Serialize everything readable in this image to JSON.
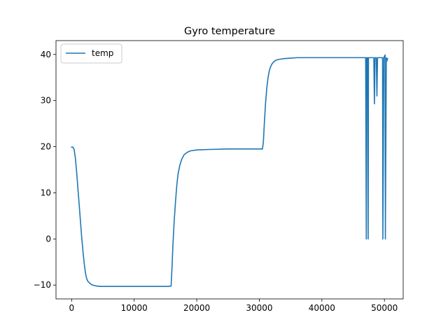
{
  "chart_data": {
    "type": "line",
    "title": "Gyro temperature",
    "xlabel": "",
    "ylabel": "",
    "xlim": [
      -2500,
      53000
    ],
    "ylim": [
      -13,
      43
    ],
    "xticks": [
      0,
      10000,
      20000,
      30000,
      40000,
      50000
    ],
    "xtick_labels": [
      "0",
      "10000",
      "20000",
      "30000",
      "40000",
      "50000"
    ],
    "yticks": [
      -10,
      0,
      10,
      20,
      30,
      40
    ],
    "ytick_labels": [
      "−10",
      "0",
      "10",
      "20",
      "30",
      "40"
    ],
    "grid": false,
    "legend_position": "upper left",
    "series": [
      {
        "name": "temp",
        "color": "#1f77b4",
        "x": [
          0,
          200,
          400,
          600,
          800,
          1000,
          1200,
          1400,
          1600,
          1800,
          2000,
          2200,
          2400,
          2600,
          2900,
          3200,
          3600,
          4000,
          4500,
          5000,
          6000,
          8000,
          10000,
          12000,
          14000,
          15500,
          15900,
          16050,
          16200,
          16400,
          16600,
          16800,
          17000,
          17300,
          17600,
          18000,
          18500,
          19000,
          20000,
          22000,
          25000,
          28000,
          30500,
          30650,
          30800,
          31000,
          31200,
          31400,
          31600,
          31800,
          32000,
          32300,
          32600,
          33000,
          33500,
          34000,
          35000,
          36000,
          36500,
          40000,
          44000,
          47000,
          47100,
          47150,
          47300,
          47400,
          47450,
          47600,
          47700,
          48300,
          48400,
          48500,
          48700,
          48800,
          48900,
          49200,
          49700,
          49750,
          49900,
          50100,
          50150,
          50300,
          50400,
          50500
        ],
        "y": [
          19.9,
          19.9,
          19.4,
          17.5,
          14.5,
          11.0,
          7.5,
          4.0,
          0.5,
          -2.5,
          -5.2,
          -7.3,
          -8.6,
          -9.2,
          -9.6,
          -9.9,
          -10.1,
          -10.2,
          -10.3,
          -10.3,
          -10.3,
          -10.3,
          -10.3,
          -10.3,
          -10.3,
          -10.3,
          -10.2,
          -6.0,
          -1.0,
          4.0,
          8.0,
          11.5,
          14.0,
          16.0,
          17.3,
          18.3,
          18.8,
          19.1,
          19.3,
          19.4,
          19.5,
          19.5,
          19.5,
          21.0,
          25.0,
          29.5,
          32.8,
          35.0,
          36.5,
          37.3,
          37.9,
          38.4,
          38.7,
          38.9,
          39.0,
          39.1,
          39.2,
          39.3,
          39.3,
          39.3,
          39.3,
          39.3,
          0.0,
          39.3,
          39.3,
          0.0,
          39.3,
          39.3,
          39.3,
          39.3,
          29.3,
          39.3,
          39.3,
          31.0,
          39.3,
          39.3,
          39.3,
          0.0,
          39.3,
          39.9,
          0.0,
          39.3,
          38.6,
          39.1
        ]
      }
    ]
  }
}
